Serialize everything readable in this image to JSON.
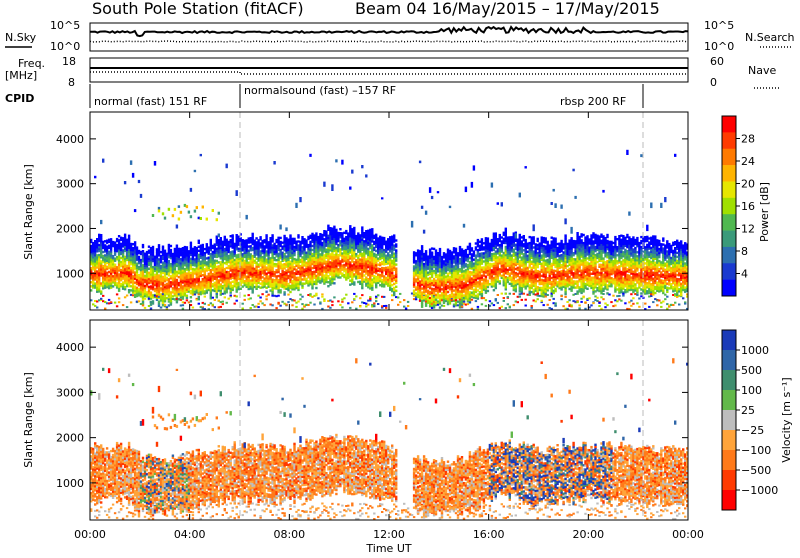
{
  "header": {
    "title_left": "South Pole Station (fitACF)",
    "title_right": "Beam 04 16/May/2015 – 17/May/2015"
  },
  "sky_panel": {
    "left_label": "N.Sky",
    "right_label": "N.Search",
    "left_ticks": [
      "10^5",
      "10^0"
    ],
    "right_ticks": [
      "10^5",
      "10^0"
    ]
  },
  "freq_panel": {
    "left_label_top": "Freq.",
    "left_label_bottom": "[MHz]",
    "right_label": "Nave",
    "left_ticks": [
      "18",
      "8"
    ],
    "right_ticks": [
      "60",
      "0"
    ]
  },
  "cpid": {
    "label": "CPID",
    "modes": [
      "normal (fast) 151 RF",
      "normalsound (fast) –157 RF",
      "rbsp 200 RF"
    ]
  },
  "power_panel": {
    "ylabel": "Slant Range [km]",
    "yticks": [
      "4000",
      "3000",
      "2000",
      "1000"
    ],
    "colorbar_label": "Power [dB]",
    "colorbar_ticks": [
      "28",
      "24",
      "20",
      "16",
      "12",
      "8",
      "4"
    ],
    "colors": [
      "#ff0000",
      "#ff3b00",
      "#ff7a00",
      "#ffb400",
      "#e6e600",
      "#a0e000",
      "#50b850",
      "#3a9a7a",
      "#2c6fb0",
      "#1a3ad0",
      "#0000ff"
    ]
  },
  "velocity_panel": {
    "ylabel": "Slant Range [km]",
    "yticks": [
      "4000",
      "3000",
      "2000",
      "1000"
    ],
    "colorbar_label": "Velocity [m s⁻¹]",
    "colorbar_ticks": [
      "1000",
      "500",
      "100",
      "25",
      "−25",
      "−100",
      "−500",
      "−1000"
    ],
    "colors": [
      "#1a3ab8",
      "#2f66a8",
      "#3f8e6e",
      "#62b84a",
      "#bdbdbd",
      "#ffa43a",
      "#ff7a1a",
      "#ff3a00",
      "#ff0000"
    ]
  },
  "xaxis": {
    "label": "Time UT",
    "ticks": [
      "00:00",
      "04:00",
      "08:00",
      "12:00",
      "16:00",
      "20:00",
      "00:00"
    ]
  },
  "chart_data": {
    "type": "heatmap",
    "title": "South Pole Station (fitACF) Beam 04 16/May/2015 – 17/May/2015",
    "xlabel": "Time UT",
    "ylabel": "Slant Range [km]",
    "xlim_hours": [
      0,
      24
    ],
    "ylim_km": [
      180,
      4600
    ],
    "mode_changes_hours": [
      6.0,
      22.0
    ],
    "main_band_center_km": [
      {
        "t": 0,
        "r": 950
      },
      {
        "t": 1.5,
        "r": 1000
      },
      {
        "t": 2.0,
        "r": 750
      },
      {
        "t": 3.0,
        "r": 700
      },
      {
        "t": 4.5,
        "r": 850
      },
      {
        "t": 6.0,
        "r": 1000
      },
      {
        "t": 8.0,
        "r": 950
      },
      {
        "t": 10.0,
        "r": 1200
      },
      {
        "t": 12.0,
        "r": 1000
      },
      {
        "t": 13.5,
        "r": 650
      },
      {
        "t": 15.0,
        "r": 700
      },
      {
        "t": 16.5,
        "r": 1100
      },
      {
        "t": 18.0,
        "r": 900
      },
      {
        "t": 20.0,
        "r": 1000
      },
      {
        "t": 22.0,
        "r": 950
      },
      {
        "t": 24.0,
        "r": 900
      }
    ],
    "power_range_db": [
      0,
      30
    ],
    "velocity_range_ms": [
      -1000,
      1000
    ]
  }
}
